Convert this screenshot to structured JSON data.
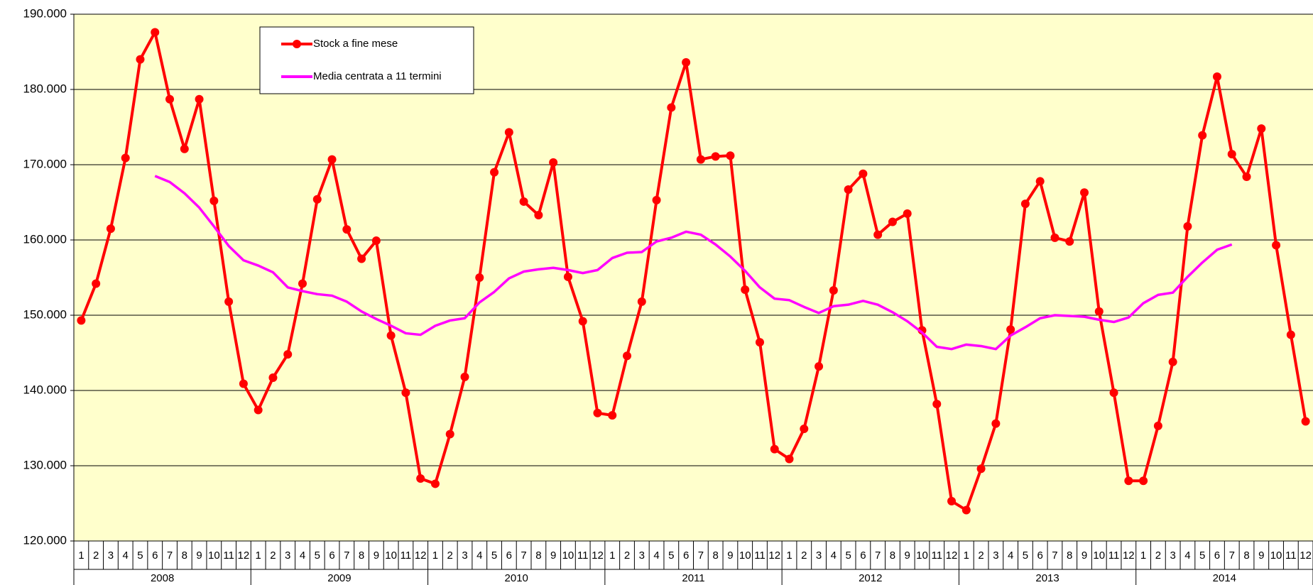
{
  "chart_data": {
    "type": "line",
    "categories": [
      "1",
      "2",
      "3",
      "4",
      "5",
      "6",
      "7",
      "8",
      "9",
      "10",
      "11",
      "12",
      "1",
      "2",
      "3",
      "4",
      "5",
      "6",
      "7",
      "8",
      "9",
      "10",
      "11",
      "12",
      "1",
      "2",
      "3",
      "4",
      "5",
      "6",
      "7",
      "8",
      "9",
      "10",
      "11",
      "12",
      "1",
      "2",
      "3",
      "4",
      "5",
      "6",
      "7",
      "8",
      "9",
      "10",
      "11",
      "12",
      "1",
      "2",
      "3",
      "4",
      "5",
      "6",
      "7",
      "8",
      "9",
      "10",
      "11",
      "12",
      "1",
      "2",
      "3",
      "4",
      "5",
      "6",
      "7",
      "8",
      "9",
      "10",
      "11",
      "12",
      "1",
      "2",
      "3",
      "4",
      "5",
      "6",
      "7",
      "8",
      "9",
      "10",
      "11",
      "12"
    ],
    "year_groups": [
      "2008",
      "2009",
      "2010",
      "2011",
      "2012",
      "2013",
      "2014"
    ],
    "series": [
      {
        "name": "Stock a fine mese",
        "color": "#ff0000",
        "markers": true,
        "values": [
          149300,
          154200,
          161500,
          170900,
          184000,
          187600,
          178700,
          172100,
          178700,
          165200,
          151800,
          140900,
          137400,
          141700,
          144800,
          154200,
          165400,
          170700,
          161400,
          157500,
          159900,
          147300,
          139700,
          128300,
          127600,
          134200,
          141800,
          155000,
          169000,
          174300,
          165100,
          163300,
          170300,
          155100,
          149200,
          137000,
          136700,
          144600,
          151800,
          165300,
          177600,
          183600,
          170700,
          171100,
          171200,
          153400,
          146400,
          132200,
          130900,
          134900,
          143200,
          153300,
          166700,
          168800,
          160700,
          162400,
          163500,
          148000,
          138200,
          125300,
          124100,
          129600,
          135600,
          148100,
          164800,
          167800,
          160300,
          159800,
          166300,
          150500,
          139700,
          128000,
          128000,
          135300,
          143800,
          161800,
          173900,
          181700,
          171400,
          168400,
          174800,
          159300,
          147400,
          135900
        ]
      },
      {
        "name": "Media centrata a 11 termini",
        "color": "#ff00ff",
        "markers": false,
        "values": [
          null,
          null,
          null,
          null,
          null,
          168500,
          167700,
          166200,
          164300,
          161800,
          159200,
          157300,
          156600,
          155700,
          153700,
          153200,
          152800,
          152600,
          151800,
          150500,
          149500,
          148600,
          147600,
          147400,
          148600,
          149300,
          149600,
          151700,
          153100,
          154900,
          155800,
          156100,
          156300,
          156000,
          155600,
          156000,
          157600,
          158300,
          158400,
          159800,
          160300,
          161100,
          160700,
          159400,
          157800,
          155900,
          153700,
          152200,
          152000,
          151100,
          150300,
          151200,
          151400,
          151900,
          151400,
          150400,
          149200,
          147700,
          145800,
          145500,
          146100,
          145900,
          145500,
          147300,
          148400,
          149600,
          150000,
          149900,
          149800,
          149400,
          149100,
          149700,
          151600,
          152700,
          153000,
          155100,
          157000,
          158700,
          159400,
          null,
          null,
          null,
          null,
          null
        ]
      }
    ],
    "ylim": [
      120000,
      190000
    ],
    "yticks": [
      {
        "value": 120000,
        "label": "120.000"
      },
      {
        "value": 130000,
        "label": "130.000"
      },
      {
        "value": 140000,
        "label": "140.000"
      },
      {
        "value": 150000,
        "label": "150.000"
      },
      {
        "value": 160000,
        "label": "160.000"
      },
      {
        "value": 170000,
        "label": "170.000"
      },
      {
        "value": 180000,
        "label": "180.000"
      },
      {
        "value": 190000,
        "label": "190.000"
      }
    ],
    "grid": true,
    "background": "#ffffcc"
  }
}
